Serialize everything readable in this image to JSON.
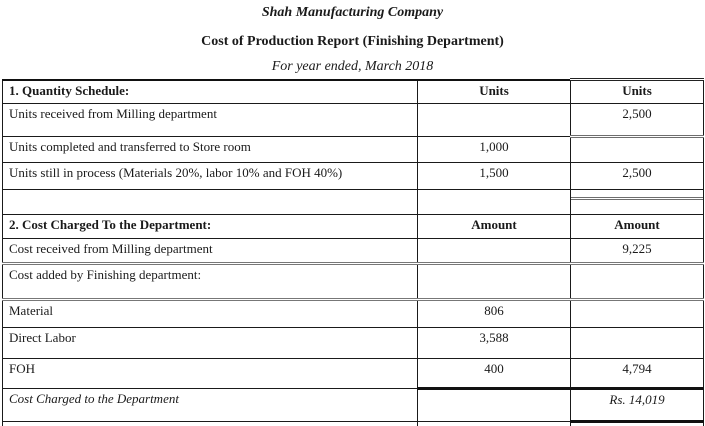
{
  "header": {
    "company": "Shah Manufacturing Company",
    "report_title": "Cost of Production Report (Finishing Department)",
    "period": "For year ended, March 2018"
  },
  "colors": {
    "text": "#1a1a1a",
    "rule_thin": "#1a1a1a",
    "rule_thick": "#111111",
    "rule_double_gray": "#6e6e6e",
    "table_bottom_gray": "#999999"
  },
  "table": {
    "rows": [
      {
        "label": "1. Quantity Schedule:",
        "col2": "Units",
        "col3": "Units"
      },
      {
        "label": "Units received from Milling department",
        "col2": "",
        "col3": "2,500"
      },
      {
        "label": "Units completed and transferred to Store room",
        "col2": "1,000",
        "col3": ""
      },
      {
        "label": "Units still in process (Materials 20%, labor 10% and FOH 40%)",
        "col2": "1,500",
        "col3": "2,500"
      },
      {
        "label": "",
        "col2": "",
        "col3": ""
      },
      {
        "label": "2. Cost Charged To the Department:",
        "col2": "Amount",
        "col3": "Amount"
      },
      {
        "label": "Cost received from Milling department",
        "col2": "",
        "col3": "9,225"
      },
      {
        "label": "Cost added by Finishing department:",
        "col2": "",
        "col3": ""
      },
      {
        "label": "Material",
        "col2": "806",
        "col3": ""
      },
      {
        "label": "Direct Labor",
        "col2": "3,588",
        "col3": ""
      },
      {
        "label": "FOH",
        "col2": "400",
        "col3": "4,794"
      },
      {
        "label": "Cost Charged to the Department",
        "col2": "",
        "col3": "Rs. 14,019"
      },
      {
        "label": "",
        "col2": "",
        "col3": ""
      }
    ]
  }
}
